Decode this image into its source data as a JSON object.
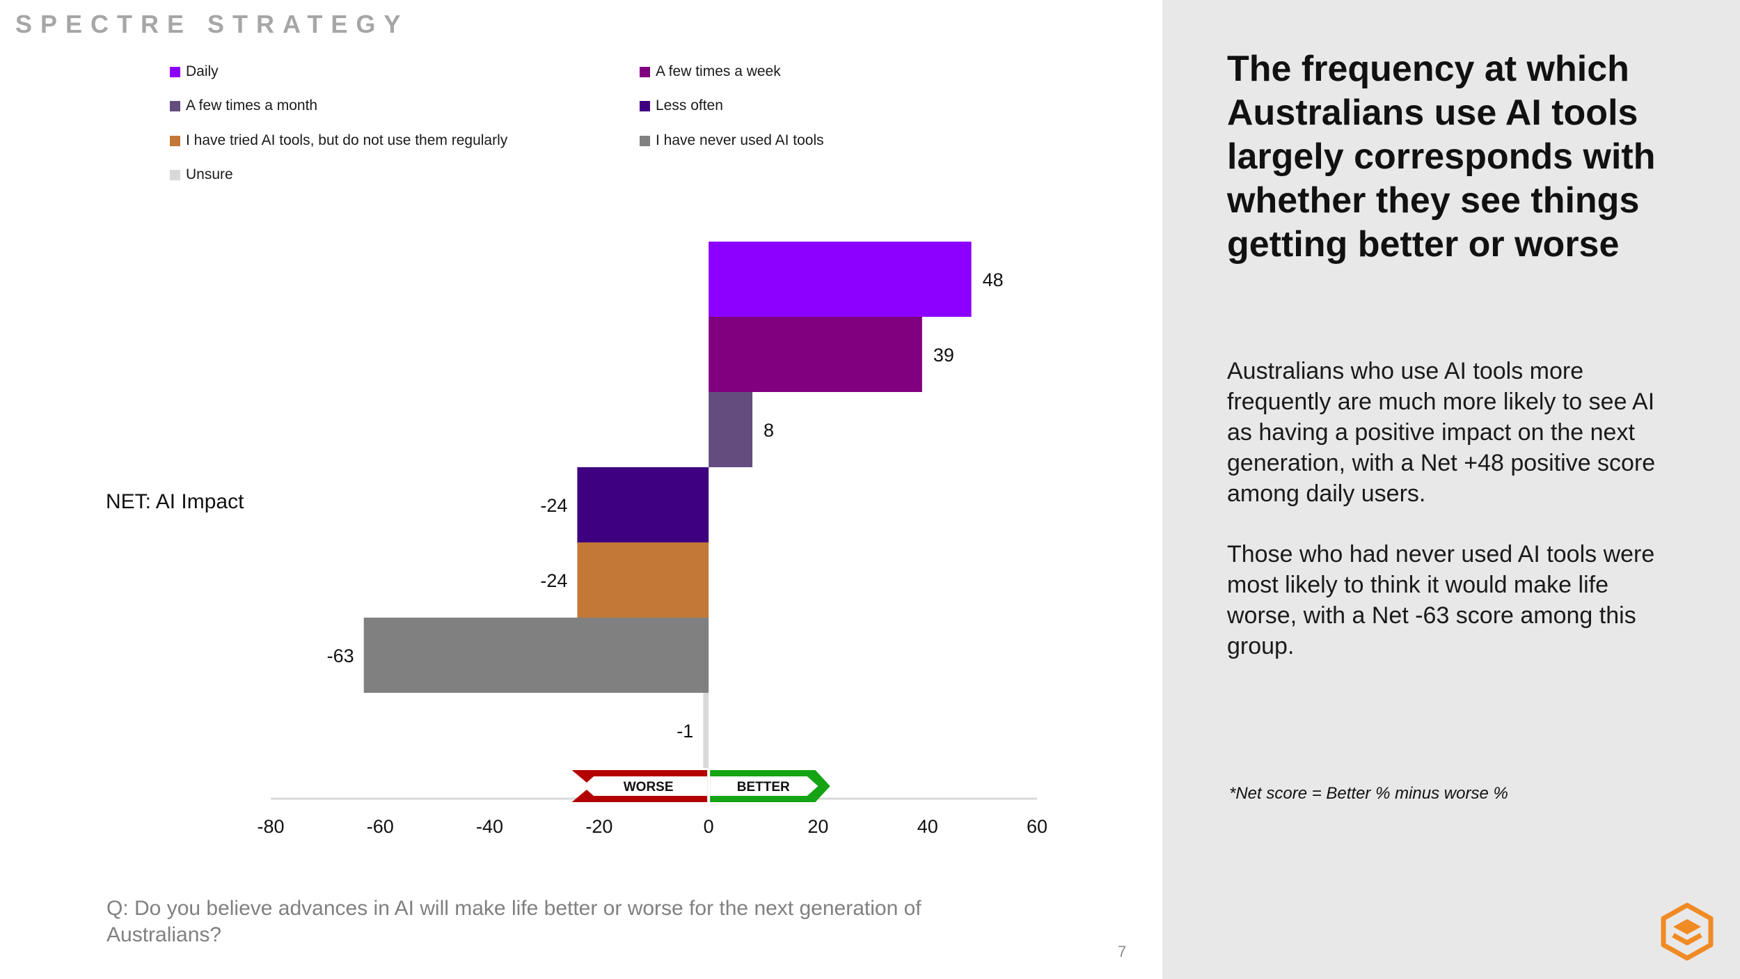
{
  "brand": "SPECTRE STRATEGY",
  "legend": [
    {
      "label": "Daily",
      "color": "#8b00ff"
    },
    {
      "label": "A few times a week",
      "color": "#800080"
    },
    {
      "label": "A few times a month",
      "color": "#644c7f"
    },
    {
      "label": "Less often",
      "color": "#3e0080"
    },
    {
      "label": "I have tried AI tools, but do not use them regularly",
      "color": "#c37838"
    },
    {
      "label": "I have never used AI tools",
      "color": "#808080"
    },
    {
      "label": "Unsure",
      "color": "#d9d9d9"
    }
  ],
  "net_label": "NET: AI Impact",
  "question": "Q: Do you believe advances in AI will make life better or worse for the next generation of Australians?",
  "page_number": "7",
  "right_panel": {
    "headline": "The frequency at which Australians use AI tools largely corresponds with whether they see things getting better or worse",
    "paragraph1": "Australians who use AI tools more frequently are much more likely to see AI as having a positive impact on the next generation, with a Net +48 positive score among daily users.",
    "paragraph2": "Those who had never used AI tools were most likely to think it would make life worse, with a Net -63 score among this group.",
    "footnote": "*Net score = Better % minus worse %"
  },
  "indicator": {
    "worse": "WORSE",
    "better": "BETTER"
  },
  "chart_data": {
    "type": "bar",
    "orientation": "horizontal",
    "title": "",
    "xlabel": "",
    "ylabel": "NET: AI Impact",
    "xlim": [
      -80,
      60
    ],
    "x_ticks": [
      -80,
      -60,
      -40,
      -20,
      0,
      20,
      40,
      60
    ],
    "series": [
      {
        "name": "Daily",
        "value": 48,
        "color": "#8b00ff"
      },
      {
        "name": "A few times a week",
        "value": 39,
        "color": "#800080"
      },
      {
        "name": "A few times a month",
        "value": 8,
        "color": "#644c7f"
      },
      {
        "name": "Less often",
        "value": -24,
        "color": "#3e0080"
      },
      {
        "name": "I have tried AI tools, but do not use them regularly",
        "value": -24,
        "color": "#c37838"
      },
      {
        "name": "I have never used AI tools",
        "value": -63,
        "color": "#808080"
      },
      {
        "name": "Unsure",
        "value": -1,
        "color": "#d9d9d9"
      }
    ]
  }
}
